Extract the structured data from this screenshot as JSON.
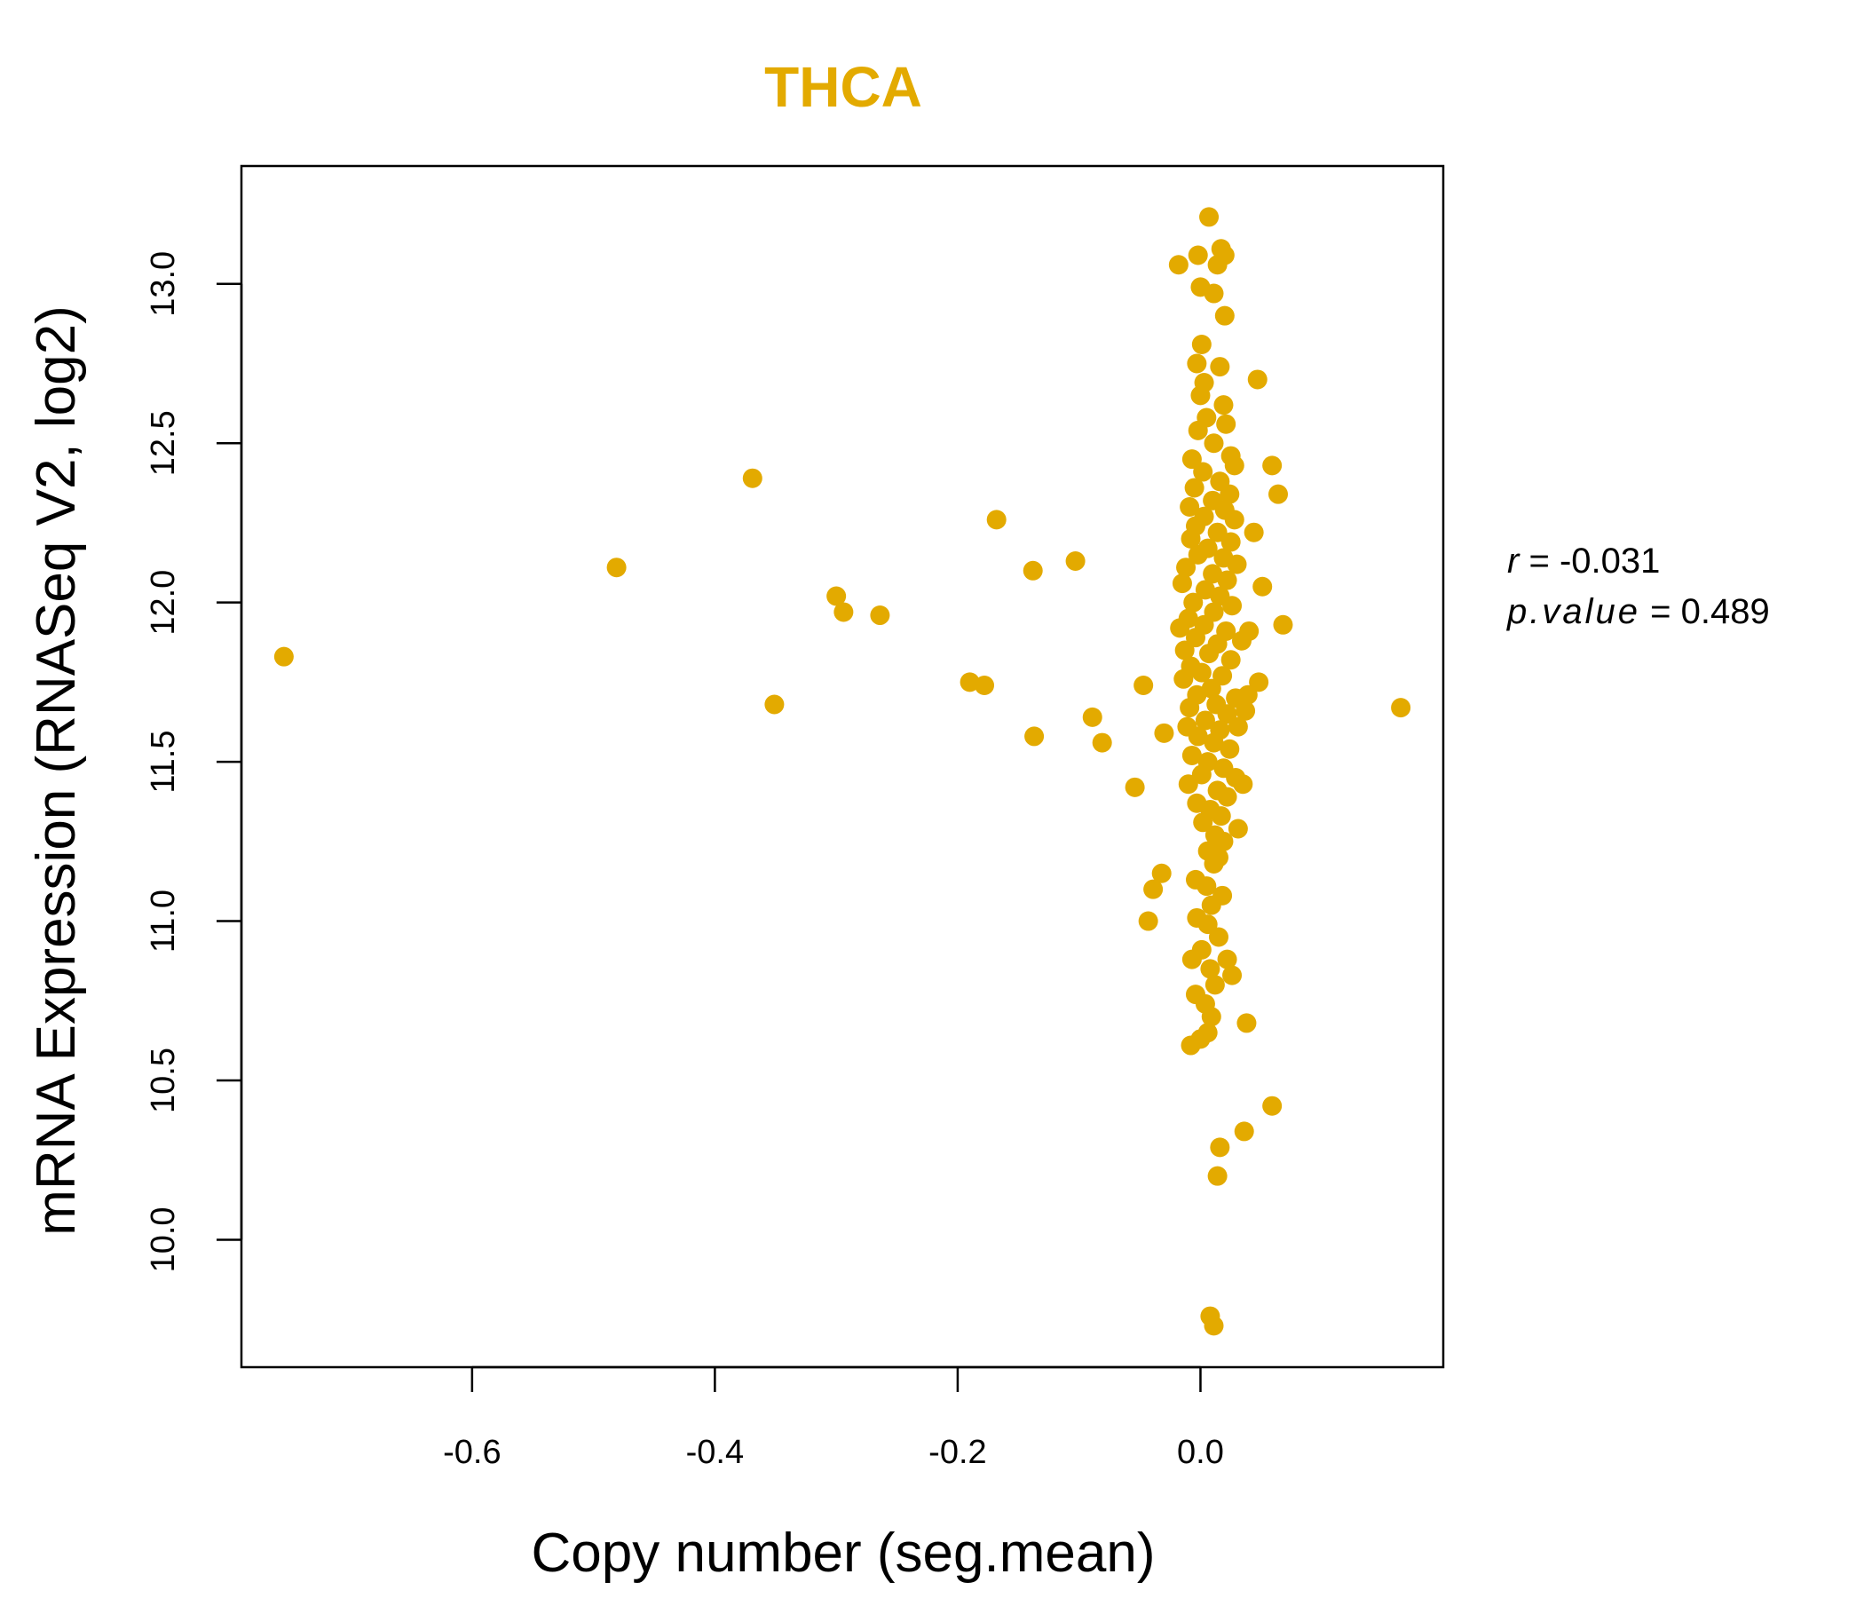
{
  "chart_data": {
    "type": "scatter",
    "title": "THCA",
    "xlabel": "Copy number (seg.mean)",
    "ylabel": "mRNA Expression (RNASeq V2, log2)",
    "xlim": [
      -0.79,
      0.2
    ],
    "ylim": [
      9.6,
      13.37
    ],
    "x_ticks": [
      -0.6,
      -0.4,
      -0.2,
      0.0
    ],
    "x_tick_labels": [
      "-0.6",
      "-0.4",
      "-0.2",
      "0.0"
    ],
    "y_ticks": [
      10.0,
      10.5,
      11.0,
      11.5,
      12.0,
      12.5,
      13.0
    ],
    "y_tick_labels": [
      "10.0",
      "10.5",
      "11.0",
      "11.5",
      "12.0",
      "12.5",
      "13.0"
    ],
    "point_color": "#E3AA00",
    "stats": {
      "r_label": "r",
      "r_value": "-0.031",
      "p_label": "p.value",
      "p_value": "0.489"
    },
    "points": [
      {
        "x": -0.755,
        "y": 11.83
      },
      {
        "x": -0.481,
        "y": 12.11
      },
      {
        "x": -0.369,
        "y": 12.39
      },
      {
        "x": -0.351,
        "y": 11.68
      },
      {
        "x": -0.3,
        "y": 12.02
      },
      {
        "x": -0.294,
        "y": 11.97
      },
      {
        "x": -0.264,
        "y": 11.96
      },
      {
        "x": -0.19,
        "y": 11.75
      },
      {
        "x": -0.178,
        "y": 11.74
      },
      {
        "x": -0.168,
        "y": 12.26
      },
      {
        "x": -0.138,
        "y": 12.1
      },
      {
        "x": -0.137,
        "y": 11.58
      },
      {
        "x": -0.103,
        "y": 12.13
      },
      {
        "x": -0.089,
        "y": 11.64
      },
      {
        "x": -0.081,
        "y": 11.56
      },
      {
        "x": -0.054,
        "y": 11.42
      },
      {
        "x": -0.047,
        "y": 11.74
      },
      {
        "x": -0.043,
        "y": 11.0
      },
      {
        "x": -0.039,
        "y": 11.1
      },
      {
        "x": -0.032,
        "y": 11.15
      },
      {
        "x": -0.03,
        "y": 11.59
      },
      {
        "x": -0.018,
        "y": 13.06
      },
      {
        "x": 0.165,
        "y": 11.67
      },
      {
        "x": 0.068,
        "y": 11.93
      },
      {
        "x": 0.064,
        "y": 12.34
      },
      {
        "x": 0.059,
        "y": 12.43
      },
      {
        "x": 0.059,
        "y": 10.42
      },
      {
        "x": 0.047,
        "y": 12.7
      },
      {
        "x": 0.051,
        "y": 12.05
      },
      {
        "x": 0.044,
        "y": 12.22
      },
      {
        "x": 0.036,
        "y": 10.34
      },
      {
        "x": 0.038,
        "y": 10.68
      },
      {
        "x": 0.016,
        "y": 10.29
      },
      {
        "x": 0.014,
        "y": 10.2
      },
      {
        "x": 0.008,
        "y": 9.76
      },
      {
        "x": 0.011,
        "y": 9.73
      },
      {
        "x": 0.007,
        "y": 13.21
      },
      {
        "x": 0.017,
        "y": 13.11
      },
      {
        "x": 0.02,
        "y": 13.09
      },
      {
        "x": 0.014,
        "y": 13.06
      },
      {
        "x": -0.002,
        "y": 13.09
      },
      {
        "x": 0.0,
        "y": 12.99
      },
      {
        "x": 0.011,
        "y": 12.97
      },
      {
        "x": 0.02,
        "y": 12.9
      },
      {
        "x": 0.001,
        "y": 12.81
      },
      {
        "x": -0.003,
        "y": 12.75
      },
      {
        "x": 0.016,
        "y": 12.74
      },
      {
        "x": 0.003,
        "y": 12.69
      },
      {
        "x": 0.0,
        "y": 12.65
      },
      {
        "x": 0.019,
        "y": 12.62
      },
      {
        "x": 0.005,
        "y": 12.58
      },
      {
        "x": 0.021,
        "y": 12.56
      },
      {
        "x": -0.002,
        "y": 12.54
      },
      {
        "x": 0.011,
        "y": 12.5
      },
      {
        "x": -0.007,
        "y": 12.45
      },
      {
        "x": 0.025,
        "y": 12.46
      },
      {
        "x": 0.028,
        "y": 12.43
      },
      {
        "x": 0.002,
        "y": 12.41
      },
      {
        "x": 0.016,
        "y": 12.38
      },
      {
        "x": -0.005,
        "y": 12.36
      },
      {
        "x": 0.024,
        "y": 12.34
      },
      {
        "x": 0.01,
        "y": 12.32
      },
      {
        "x": -0.009,
        "y": 12.3
      },
      {
        "x": 0.02,
        "y": 12.29
      },
      {
        "x": 0.003,
        "y": 12.27
      },
      {
        "x": 0.028,
        "y": 12.26
      },
      {
        "x": -0.004,
        "y": 12.24
      },
      {
        "x": 0.014,
        "y": 12.22
      },
      {
        "x": -0.008,
        "y": 12.2
      },
      {
        "x": 0.025,
        "y": 12.19
      },
      {
        "x": 0.006,
        "y": 12.17
      },
      {
        "x": -0.002,
        "y": 12.15
      },
      {
        "x": 0.019,
        "y": 12.14
      },
      {
        "x": 0.03,
        "y": 12.12
      },
      {
        "x": -0.012,
        "y": 12.11
      },
      {
        "x": 0.01,
        "y": 12.09
      },
      {
        "x": 0.022,
        "y": 12.07
      },
      {
        "x": -0.015,
        "y": 12.06
      },
      {
        "x": 0.004,
        "y": 12.04
      },
      {
        "x": 0.016,
        "y": 12.02
      },
      {
        "x": -0.006,
        "y": 12.0
      },
      {
        "x": 0.026,
        "y": 11.99
      },
      {
        "x": 0.011,
        "y": 11.97
      },
      {
        "x": -0.01,
        "y": 11.95
      },
      {
        "x": 0.003,
        "y": 11.93
      },
      {
        "x": 0.021,
        "y": 11.91
      },
      {
        "x": 0.04,
        "y": 11.91
      },
      {
        "x": -0.017,
        "y": 11.92
      },
      {
        "x": -0.004,
        "y": 11.89
      },
      {
        "x": 0.014,
        "y": 11.87
      },
      {
        "x": 0.034,
        "y": 11.88
      },
      {
        "x": -0.013,
        "y": 11.85
      },
      {
        "x": 0.007,
        "y": 11.84
      },
      {
        "x": 0.025,
        "y": 11.82
      },
      {
        "x": -0.008,
        "y": 11.8
      },
      {
        "x": 0.001,
        "y": 11.78
      },
      {
        "x": 0.018,
        "y": 11.77
      },
      {
        "x": -0.014,
        "y": 11.76
      },
      {
        "x": 0.048,
        "y": 11.75
      },
      {
        "x": 0.009,
        "y": 11.73
      },
      {
        "x": -0.003,
        "y": 11.71
      },
      {
        "x": 0.029,
        "y": 11.7
      },
      {
        "x": 0.039,
        "y": 11.71
      },
      {
        "x": 0.013,
        "y": 11.68
      },
      {
        "x": -0.009,
        "y": 11.67
      },
      {
        "x": 0.022,
        "y": 11.65
      },
      {
        "x": 0.037,
        "y": 11.66
      },
      {
        "x": 0.004,
        "y": 11.63
      },
      {
        "x": -0.011,
        "y": 11.61
      },
      {
        "x": 0.016,
        "y": 11.6
      },
      {
        "x": 0.031,
        "y": 11.61
      },
      {
        "x": -0.002,
        "y": 11.58
      },
      {
        "x": 0.011,
        "y": 11.56
      },
      {
        "x": 0.024,
        "y": 11.54
      },
      {
        "x": -0.007,
        "y": 11.52
      },
      {
        "x": 0.006,
        "y": 11.5
      },
      {
        "x": 0.019,
        "y": 11.48
      },
      {
        "x": 0.001,
        "y": 11.46
      },
      {
        "x": 0.029,
        "y": 11.45
      },
      {
        "x": -0.01,
        "y": 11.43
      },
      {
        "x": 0.035,
        "y": 11.43
      },
      {
        "x": 0.014,
        "y": 11.41
      },
      {
        "x": 0.022,
        "y": 11.39
      },
      {
        "x": -0.003,
        "y": 11.37
      },
      {
        "x": 0.008,
        "y": 11.35
      },
      {
        "x": 0.017,
        "y": 11.33
      },
      {
        "x": 0.002,
        "y": 11.31
      },
      {
        "x": 0.031,
        "y": 11.29
      },
      {
        "x": 0.012,
        "y": 11.27
      },
      {
        "x": 0.019,
        "y": 11.25
      },
      {
        "x": 0.006,
        "y": 11.22
      },
      {
        "x": 0.011,
        "y": 11.18
      },
      {
        "x": 0.015,
        "y": 11.2
      },
      {
        "x": -0.004,
        "y": 11.13
      },
      {
        "x": 0.005,
        "y": 11.11
      },
      {
        "x": 0.018,
        "y": 11.08
      },
      {
        "x": 0.009,
        "y": 11.05
      },
      {
        "x": -0.003,
        "y": 11.01
      },
      {
        "x": 0.006,
        "y": 10.99
      },
      {
        "x": 0.015,
        "y": 10.95
      },
      {
        "x": 0.001,
        "y": 10.91
      },
      {
        "x": 0.022,
        "y": 10.88
      },
      {
        "x": -0.007,
        "y": 10.88
      },
      {
        "x": 0.008,
        "y": 10.85
      },
      {
        "x": 0.026,
        "y": 10.83
      },
      {
        "x": 0.012,
        "y": 10.8
      },
      {
        "x": -0.004,
        "y": 10.77
      },
      {
        "x": 0.004,
        "y": 10.74
      },
      {
        "x": 0.009,
        "y": 10.7
      },
      {
        "x": 0.006,
        "y": 10.65
      },
      {
        "x": 0.0,
        "y": 10.63
      },
      {
        "x": -0.008,
        "y": 10.61
      }
    ]
  }
}
